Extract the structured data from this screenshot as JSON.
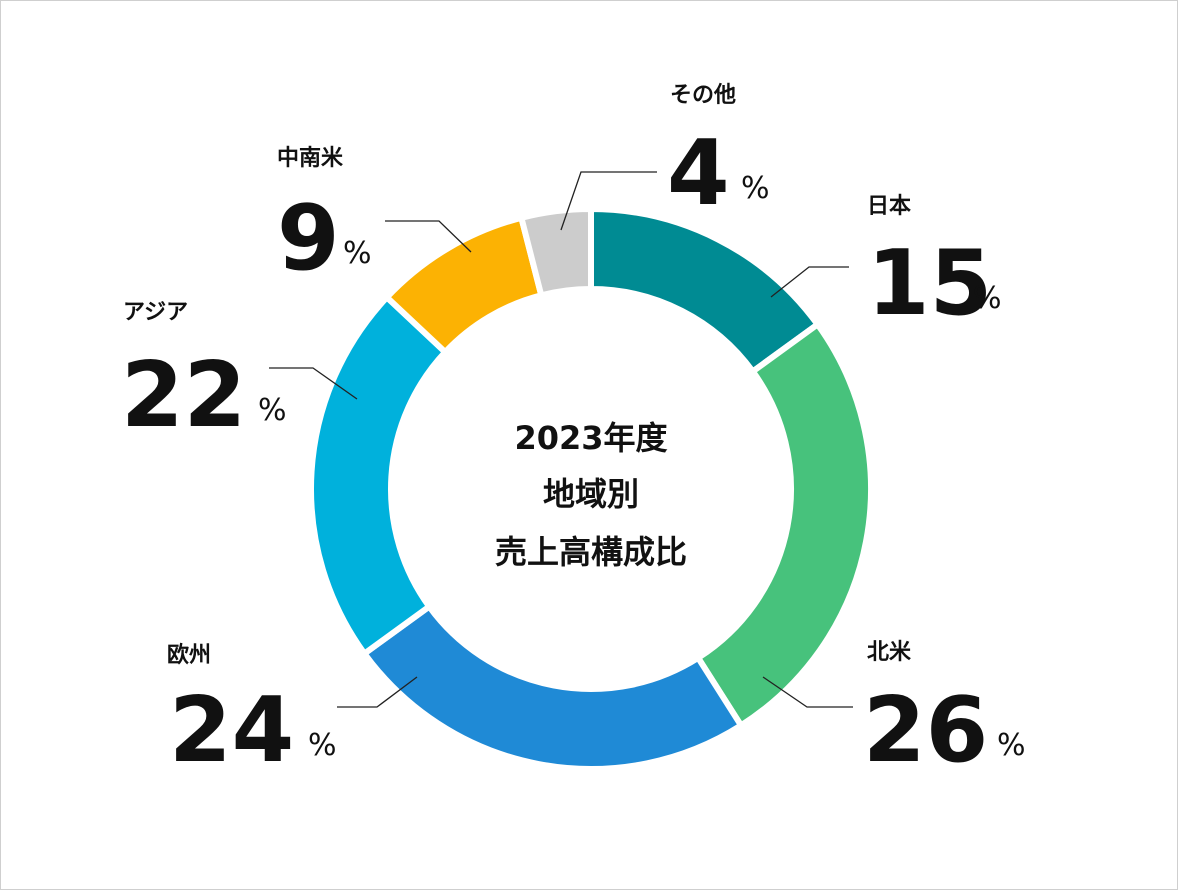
{
  "chart_data": {
    "type": "pie",
    "title": [
      "2023年度",
      "地域別",
      "売上高構成比"
    ],
    "unit": "%",
    "slices": [
      {
        "label": "日本",
        "value": 15,
        "color": "#008b93"
      },
      {
        "label": "北米",
        "value": 26,
        "color": "#47c27c"
      },
      {
        "label": "欧州",
        "value": 24,
        "color": "#1f8ad6"
      },
      {
        "label": "アジア",
        "value": 22,
        "color": "#00b1dc"
      },
      {
        "label": "中南米",
        "value": 9,
        "color": "#fcb203"
      },
      {
        "label": "その他",
        "value": 4,
        "color": "#cccccc"
      }
    ]
  }
}
